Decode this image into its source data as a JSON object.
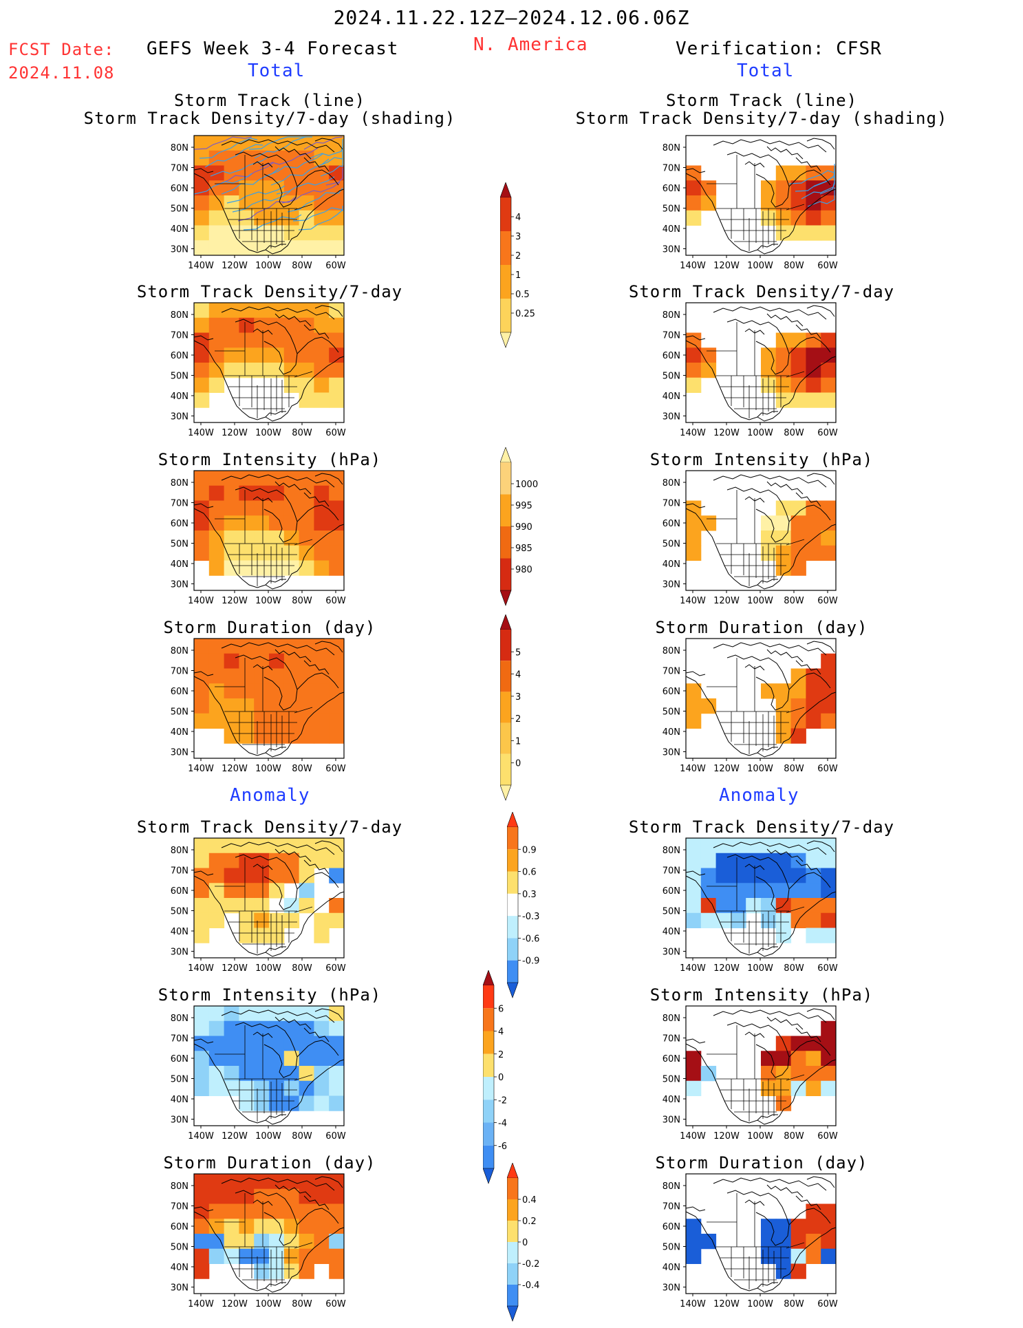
{
  "header": {
    "date_range": "2024.11.22.12Z–2024.12.06.06Z",
    "fcst_label": "FCST Date:",
    "fcst_date": "2024.11.08",
    "left_title": "GEFS Week 3-4 Forecast",
    "region": "N. America",
    "right_title": "Verification: CFSR"
  },
  "sections": {
    "total": "Total",
    "anomaly": "Anomaly"
  },
  "axes": {
    "lat_labels": [
      "80N",
      "70N",
      "60N",
      "50N",
      "40N",
      "30N"
    ],
    "lon_labels": [
      "140W",
      "120W",
      "100W",
      "80W",
      "60W"
    ]
  },
  "panels": [
    {
      "row": 0,
      "title_line1": "Storm Track (line)",
      "title_line2": "Storm Track Density/7-day (shading)"
    },
    {
      "row": 1,
      "title_line1": "Storm Track Density/7-day",
      "title_line2": ""
    },
    {
      "row": 2,
      "title_line1": "Storm Intensity (hPa)",
      "title_line2": ""
    },
    {
      "row": 3,
      "title_line1": "Storm Duration (day)",
      "title_line2": ""
    },
    {
      "row": 4,
      "title_line1": "Storm Track Density/7-day",
      "title_line2": ""
    },
    {
      "row": 5,
      "title_line1": "Storm Intensity (hPa)",
      "title_line2": ""
    },
    {
      "row": 6,
      "title_line1": "Storm Duration (day)",
      "title_line2": ""
    }
  ],
  "colorbars": [
    {
      "name": "density-total",
      "labels": [
        "4",
        "3",
        "2",
        "1",
        "0.5",
        "0.25"
      ],
      "colors": [
        "#a50f15",
        "#e03a12",
        "#f8761b",
        "#fca41e",
        "#fdd35a",
        "#fff1a6"
      ]
    },
    {
      "name": "intensity-total",
      "labels": [
        "1000",
        "995",
        "990",
        "985",
        "980"
      ],
      "colors": [
        "#fff1a6",
        "#fcd27a",
        "#fca41e",
        "#f06a12",
        "#d62b12",
        "#a50f15"
      ]
    },
    {
      "name": "duration-total",
      "labels": [
        "5",
        "4",
        "3",
        "2",
        "1",
        "0"
      ],
      "colors": [
        "#a50f15",
        "#d62b12",
        "#f06a12",
        "#fca41e",
        "#fcc64a",
        "#fde06d",
        "#fff1a6"
      ]
    },
    {
      "name": "density-anom",
      "labels": [
        "0.9",
        "0.6",
        "0.3",
        "-0.3",
        "-0.6",
        "-0.9"
      ],
      "colors": [
        "#ff3a14",
        "#f8761b",
        "#fca41e",
        "#fde06d",
        "#ffffff",
        "#bfeffd",
        "#8fd2f8",
        "#3f8ef3",
        "#1a5ed8"
      ]
    },
    {
      "name": "intensity-anom",
      "labels": [
        "6",
        "4",
        "2",
        "0",
        "-2",
        "-4",
        "-6"
      ],
      "colors": [
        "#a50f15",
        "#ff3a14",
        "#f8761b",
        "#fca41e",
        "#fde06d",
        "#bfeffd",
        "#8fd2f8",
        "#6bb2f5",
        "#3f8ef3",
        "#1a5ed8"
      ]
    },
    {
      "name": "duration-anom",
      "labels": [
        "0.4",
        "0.2",
        "0",
        "-0.2",
        "-0.4"
      ],
      "colors": [
        "#ff3a14",
        "#f8761b",
        "#fca41e",
        "#fde06d",
        "#bfeffd",
        "#8fd2f8",
        "#3f8ef3",
        "#1a5ed8"
      ]
    }
  ]
}
